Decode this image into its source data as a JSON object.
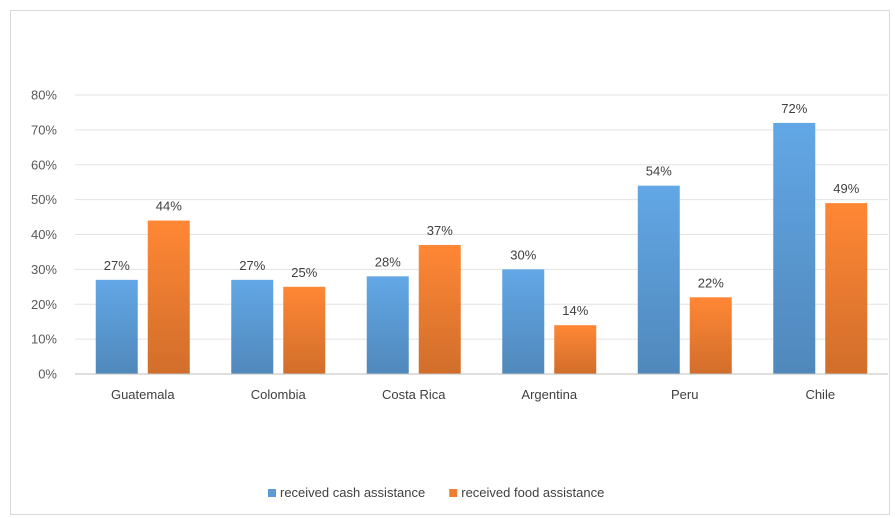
{
  "chart_data": {
    "type": "bar",
    "categories": [
      "Guatemala",
      "Colombia",
      "Costa Rica",
      "Argentina",
      "Peru",
      "Chile"
    ],
    "series": [
      {
        "name": "received cash assistance",
        "values": [
          27,
          27,
          28,
          30,
          54,
          72
        ],
        "labels": [
          "27%",
          "27%",
          "28%",
          "30%",
          "54%",
          "72%"
        ],
        "color": "#5b9bd5"
      },
      {
        "name": "received food assistance",
        "values": [
          44,
          25,
          37,
          14,
          22,
          49
        ],
        "labels": [
          "44%",
          "25%",
          "37%",
          "14%",
          "22%",
          "49%"
        ],
        "color": "#ed7d31"
      }
    ],
    "ylim": [
      0,
      80
    ],
    "yticks": [
      0,
      10,
      20,
      30,
      40,
      50,
      60,
      70,
      80
    ],
    "ytick_labels": [
      "0%",
      "10%",
      "20%",
      "30%",
      "40%",
      "50%",
      "60%",
      "70%",
      "80%"
    ],
    "grid": true,
    "legend_position": "bottom-center",
    "title": "",
    "xlabel": "",
    "ylabel": ""
  }
}
